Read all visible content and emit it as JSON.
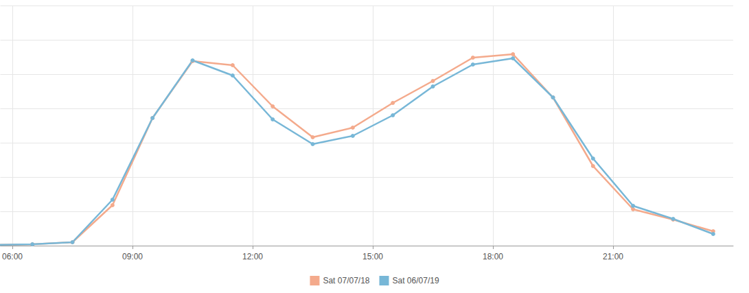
{
  "chart_data": {
    "type": "line",
    "x": [
      5.5,
      6.5,
      7.5,
      8.5,
      9.5,
      10.5,
      11.5,
      12.5,
      13.5,
      14.5,
      15.5,
      16.5,
      17.5,
      18.5,
      19.5,
      20.5,
      21.5,
      22.5,
      23.5
    ],
    "series": [
      {
        "name": "Sat 07/07/18",
        "color": "#f4aa8c",
        "values": [
          0.02,
          0.04,
          0.1,
          1.18,
          3.72,
          5.38,
          5.26,
          4.06,
          3.16,
          3.44,
          4.16,
          4.8,
          5.48,
          5.58,
          4.32,
          2.32,
          1.06,
          0.76,
          0.42
        ]
      },
      {
        "name": "Sat 06/07/19",
        "color": "#77b7d7",
        "values": [
          0.02,
          0.04,
          0.1,
          1.34,
          3.72,
          5.4,
          4.96,
          3.68,
          2.96,
          3.2,
          3.8,
          4.64,
          5.28,
          5.46,
          4.32,
          2.54,
          1.16,
          0.78,
          0.34
        ]
      }
    ],
    "xlim": [
      5.7,
      24
    ],
    "xticks": [
      {
        "value": 6,
        "label": "06:00"
      },
      {
        "value": 9,
        "label": "09:00"
      },
      {
        "value": 12,
        "label": "12:00"
      },
      {
        "value": 15,
        "label": "15:00"
      },
      {
        "value": 18,
        "label": "18:00"
      },
      {
        "value": 21,
        "label": "21:00"
      }
    ],
    "ylim": [
      0,
      7
    ],
    "yticks": [
      0,
      1,
      2,
      3,
      4,
      5,
      6,
      7
    ],
    "grid": true,
    "legend": "bottom",
    "marker": "circle",
    "tick_labels": "x"
  }
}
